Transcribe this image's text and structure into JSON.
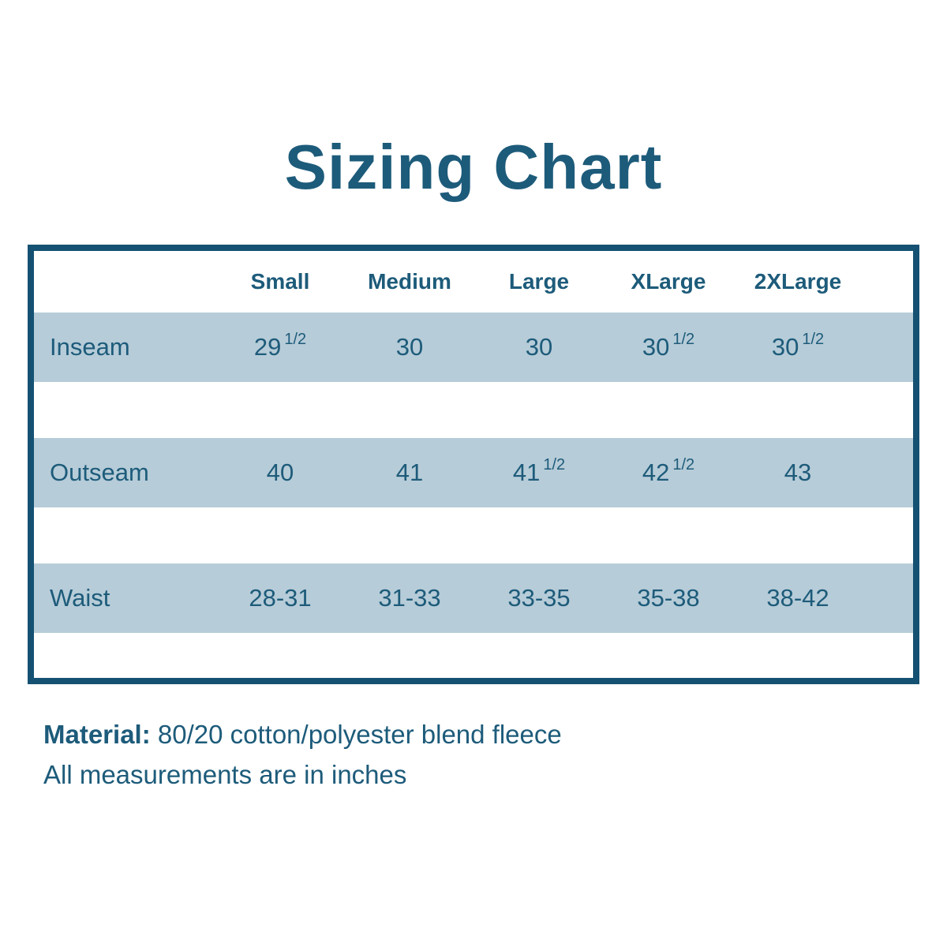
{
  "title": "Sizing Chart",
  "table": {
    "columns": [
      "Small",
      "Medium",
      "Large",
      "XLarge",
      "2XLarge"
    ],
    "rows": [
      {
        "label": "Inseam",
        "values": [
          {
            "main": "29",
            "sup": "1/2"
          },
          {
            "main": "30"
          },
          {
            "main": "30"
          },
          {
            "main": "30",
            "sup": "1/2"
          },
          {
            "main": "30",
            "sup": "1/2"
          }
        ]
      },
      {
        "label": "Outseam",
        "values": [
          {
            "main": "40"
          },
          {
            "main": "41"
          },
          {
            "main": "41",
            "sup": "1/2"
          },
          {
            "main": "42",
            "sup": "1/2"
          },
          {
            "main": "43"
          }
        ]
      },
      {
        "label": "Waist",
        "values": [
          {
            "main": "28-31"
          },
          {
            "main": "31-33"
          },
          {
            "main": "33-35"
          },
          {
            "main": "35-38"
          },
          {
            "main": "38-42"
          }
        ]
      }
    ]
  },
  "footer": {
    "material_label": "Material:",
    "material_value": " 80/20 cotton/polyester blend fleece",
    "note": "All measurements are in inches"
  },
  "colors": {
    "teal_text": "#1d5b7a",
    "teal_border": "#155172",
    "band": "#b6ccd8",
    "background": "#ffffff"
  },
  "chart_data": {
    "type": "table",
    "title": "Sizing Chart",
    "columns": [
      "",
      "Small",
      "Medium",
      "Large",
      "XLarge",
      "2XLarge"
    ],
    "rows": [
      [
        "Inseam",
        "29 1/2",
        "30",
        "30",
        "30 1/2",
        "30 1/2"
      ],
      [
        "Outseam",
        "40",
        "41",
        "41 1/2",
        "42 1/2",
        "43"
      ],
      [
        "Waist",
        "28-31",
        "31-33",
        "33-35",
        "35-38",
        "38-42"
      ]
    ],
    "notes": [
      "Material: 80/20 cotton/polyester blend fleece",
      "All measurements are in inches"
    ],
    "units": "inches"
  }
}
